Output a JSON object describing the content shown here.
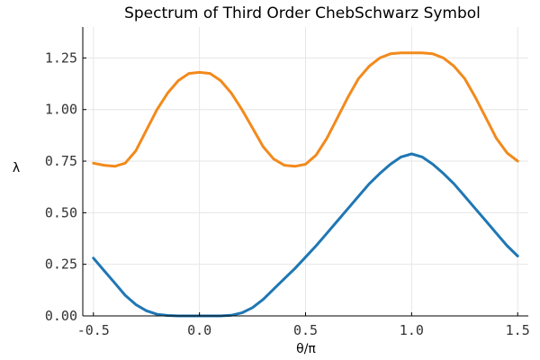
{
  "chart_data": {
    "type": "line",
    "title": "Spectrum of Third Order ChebSchwarz Symbol",
    "xlabel": "θ/π",
    "ylabel": "λ",
    "xlim": [
      -0.55,
      1.55
    ],
    "ylim": [
      0,
      1.4
    ],
    "x_ticks": [
      -0.5,
      0.0,
      0.5,
      1.0,
      1.5
    ],
    "x_tick_labels": [
      "-0.5",
      "0.0",
      "0.5",
      "1.0",
      "1.5"
    ],
    "y_ticks": [
      0.0,
      0.25,
      0.5,
      0.75,
      1.0,
      1.25
    ],
    "y_tick_labels": [
      "0.00",
      "0.25",
      "0.50",
      "0.75",
      "1.00",
      "1.25"
    ],
    "grid": true,
    "legend": "none",
    "x": [
      -0.5,
      -0.45,
      -0.4,
      -0.35,
      -0.3,
      -0.25,
      -0.2,
      -0.15,
      -0.1,
      -0.05,
      0.0,
      0.05,
      0.1,
      0.15,
      0.2,
      0.25,
      0.3,
      0.35,
      0.4,
      0.45,
      0.5,
      0.55,
      0.6,
      0.65,
      0.7,
      0.75,
      0.8,
      0.85,
      0.9,
      0.95,
      1.0,
      1.05,
      1.1,
      1.15,
      1.2,
      1.25,
      1.3,
      1.35,
      1.4,
      1.45,
      1.5
    ],
    "series": [
      {
        "color": "#1f77b4",
        "values": [
          0.28,
          0.22,
          0.16,
          0.1,
          0.055,
          0.025,
          0.008,
          0.002,
          0.0,
          0.0,
          0.0,
          0.0,
          0.0,
          0.003,
          0.015,
          0.04,
          0.08,
          0.13,
          0.18,
          0.23,
          0.285,
          0.34,
          0.4,
          0.46,
          0.52,
          0.58,
          0.64,
          0.69,
          0.735,
          0.77,
          0.785,
          0.77,
          0.735,
          0.69,
          0.64,
          0.58,
          0.52,
          0.46,
          0.4,
          0.34,
          0.29
        ]
      },
      {
        "color": "#f28a1c",
        "values": [
          0.74,
          0.73,
          0.725,
          0.74,
          0.8,
          0.9,
          1.0,
          1.08,
          1.14,
          1.175,
          1.18,
          1.175,
          1.14,
          1.08,
          1.0,
          0.91,
          0.82,
          0.76,
          0.73,
          0.725,
          0.735,
          0.78,
          0.86,
          0.96,
          1.06,
          1.15,
          1.21,
          1.25,
          1.27,
          1.275,
          1.275,
          1.275,
          1.27,
          1.25,
          1.21,
          1.15,
          1.06,
          0.96,
          0.86,
          0.79,
          0.75
        ]
      }
    ]
  }
}
